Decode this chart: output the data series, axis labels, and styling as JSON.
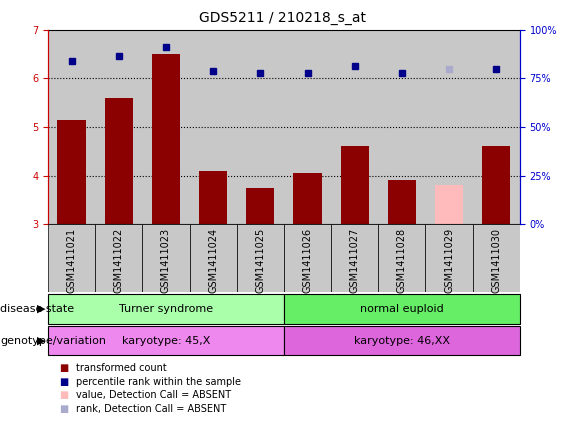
{
  "title": "GDS5211 / 210218_s_at",
  "samples": [
    "GSM1411021",
    "GSM1411022",
    "GSM1411023",
    "GSM1411024",
    "GSM1411025",
    "GSM1411026",
    "GSM1411027",
    "GSM1411028",
    "GSM1411029",
    "GSM1411030"
  ],
  "bar_values": [
    5.15,
    5.6,
    6.5,
    4.1,
    3.75,
    4.05,
    4.6,
    3.9,
    3.8,
    4.6
  ],
  "bar_colors": [
    "#8b0000",
    "#8b0000",
    "#8b0000",
    "#8b0000",
    "#8b0000",
    "#8b0000",
    "#8b0000",
    "#8b0000",
    "#ffbbbb",
    "#8b0000"
  ],
  "rank_values": [
    6.35,
    6.45,
    6.65,
    6.15,
    6.1,
    6.1,
    6.25,
    6.1,
    6.2,
    6.2
  ],
  "rank_colors": [
    "#00008b",
    "#00008b",
    "#00008b",
    "#00008b",
    "#00008b",
    "#00008b",
    "#00008b",
    "#00008b",
    "#aaaacc",
    "#00008b"
  ],
  "ylim": [
    3,
    7
  ],
  "yticks": [
    3,
    4,
    5,
    6,
    7
  ],
  "ytick_labels_right_pct": [
    "0%",
    "25%",
    "50%",
    "75%",
    "100%"
  ],
  "grid_lines": [
    4,
    5,
    6
  ],
  "disease_state_groups": [
    {
      "label": "Turner syndrome",
      "start": 0,
      "end": 5,
      "color": "#aaffaa"
    },
    {
      "label": "normal euploid",
      "start": 5,
      "end": 10,
      "color": "#66ee66"
    }
  ],
  "genotype_groups": [
    {
      "label": "karyotype: 45,X",
      "start": 0,
      "end": 5,
      "color": "#ee88ee"
    },
    {
      "label": "karyotype: 46,XX",
      "start": 5,
      "end": 10,
      "color": "#dd66dd"
    }
  ],
  "legend_items": [
    {
      "color": "#8b0000",
      "label": "transformed count"
    },
    {
      "color": "#00008b",
      "label": "percentile rank within the sample"
    },
    {
      "color": "#ffbbbb",
      "label": "value, Detection Call = ABSENT"
    },
    {
      "color": "#aaaacc",
      "label": "rank, Detection Call = ABSENT"
    }
  ],
  "col_bg_color": "#c8c8c8",
  "bar_width": 0.6,
  "tick_label_fontsize": 7,
  "axis_label_fontsize": 8,
  "title_fontsize": 10
}
